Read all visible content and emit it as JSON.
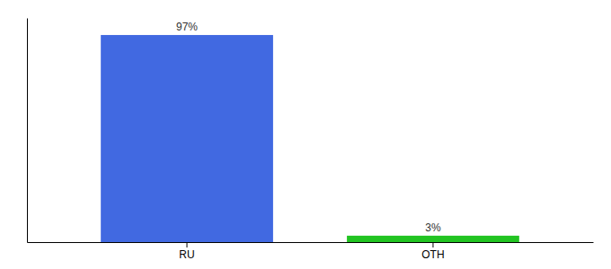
{
  "chart_data": {
    "type": "bar",
    "categories": [
      "RU",
      "OTH"
    ],
    "values": [
      97,
      3
    ],
    "value_labels": [
      "97%",
      "3%"
    ],
    "colors": [
      "#4169e1",
      "#22c422"
    ],
    "ylim": [
      0,
      105
    ],
    "yticks": [],
    "grid": false,
    "data_labels": true,
    "tick_labels": "x"
  }
}
